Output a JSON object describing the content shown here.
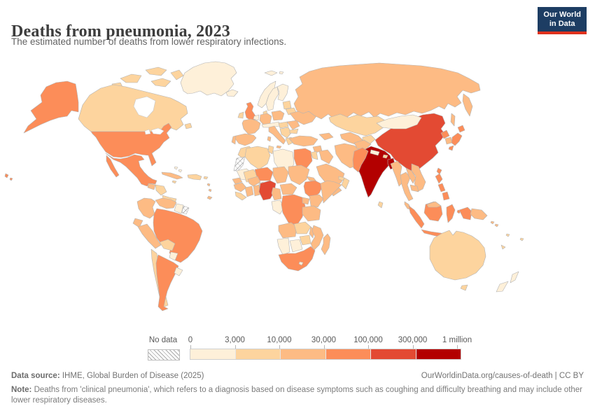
{
  "header": {
    "title": "Deaths from pneumonia, 2023",
    "subtitle": "The estimated number of deaths from lower respiratory infections."
  },
  "logo": {
    "line1": "Our World",
    "line2": "in Data",
    "bg": "#1d3d63",
    "accent": "#e0311d"
  },
  "legend": {
    "no_data_label": "No data",
    "tick_labels": [
      "0",
      "3,000",
      "10,000",
      "30,000",
      "100,000",
      "300,000",
      "1 million"
    ],
    "bin_colors": [
      "#fef0d9",
      "#fdd49e",
      "#fdbb84",
      "#fc8d59",
      "#e34a33",
      "#b30000"
    ]
  },
  "footer": {
    "source_label": "Data source:",
    "source_text": " IHME, Global Burden of Disease (2025)",
    "credit": "OurWorldinData.org/causes-of-death | CC BY",
    "note_label": "Note:",
    "note_text": " Deaths from 'clinical pneumonia', which refers to a diagnosis based on disease symptoms such as coughing and difficulty breathing and may include other lower respiratory diseases."
  },
  "chart_data": {
    "type": "choropleth_map",
    "title": "Deaths from pneumonia, 2023",
    "subtitle": "The estimated number of deaths from lower respiratory infections.",
    "unit": "deaths",
    "scale": "log-binned",
    "legend_position": "bottom",
    "bins": [
      {
        "label": "0-3,000",
        "color": "#fef0d9"
      },
      {
        "label": "3,000-10,000",
        "color": "#fdd49e"
      },
      {
        "label": "10,000-30,000",
        "color": "#fdbb84"
      },
      {
        "label": "30,000-100,000",
        "color": "#fc8d59"
      },
      {
        "label": "100,000-300,000",
        "color": "#e34a33"
      },
      {
        "label": "300,000-1 million",
        "color": "#b30000"
      },
      {
        "label": "No data",
        "color": "hatched"
      }
    ],
    "countries_by_bin": {
      "300,000-1 million": [
        "India",
        "Bangladesh"
      ],
      "100,000-300,000": [
        "China",
        "Nigeria"
      ],
      "30,000-100,000": [
        "United States",
        "Mexico",
        "Brazil",
        "Argentina",
        "United Kingdom",
        "Egypt",
        "Niger",
        "Ethiopia",
        "Democratic Republic of Congo",
        "South Africa",
        "Pakistan",
        "Japan",
        "North Korea",
        "Philippines",
        "Indonesia",
        "Taiwan"
      ],
      "10,000-30,000": [
        "Russia",
        "France",
        "Spain",
        "Portugal",
        "Germany",
        "Italy",
        "Poland",
        "Ukraine",
        "Romania",
        "Turkey",
        "Iran",
        "Iraq",
        "Saudi Arabia",
        "Yemen",
        "Afghanistan",
        "Uzbekistan",
        "Turkmenistan",
        "Colombia",
        "Venezuela",
        "Ecuador",
        "Peru",
        "Cuba",
        "Guatemala",
        "Senegal",
        "Guinea",
        "Cote d'Ivoire",
        "Ghana",
        "Burkina Faso",
        "Chad",
        "Sudan",
        "Eritrea",
        "Somalia",
        "Kenya",
        "Uganda",
        "Tanzania",
        "Angola",
        "Mozambique",
        "Malawi",
        "Cameroon",
        "Central African Republic",
        "Madagascar",
        "Myanmar",
        "Thailand",
        "Laos",
        "Vietnam",
        "Cambodia",
        "Malaysia",
        "South Korea",
        "Papua New Guinea"
      ],
      "3,000-10,000": [
        "Canada",
        "Chile",
        "Bolivia",
        "Morocco",
        "Algeria",
        "Tunisia",
        "Mali",
        "Zambia",
        "Zimbabwe",
        "Kazakhstan",
        "Kyrgyzstan",
        "Tajikistan",
        "Australia",
        "Ireland",
        "Denmark",
        "Belarus",
        "Baltic states",
        "Serbia",
        "Greece",
        "Hungary",
        "Bulgaria",
        "Sri Lanka",
        "Bhutan",
        "Israel",
        "Jordan",
        "Honduras",
        "Nicaragua",
        "Panama",
        "Costa Rica",
        "Dominican Republic",
        "Haiti",
        "Jamaica",
        "Sierra Leone",
        "Liberia",
        "Benin",
        "Togo",
        "Oman",
        "United Arab Emirates",
        "Fiji"
      ],
      "0-3,000": [
        "Greenland",
        "Iceland",
        "Norway",
        "Sweden",
        "Finland",
        "Mongolia",
        "Libya",
        "Mauritania",
        "Namibia",
        "Botswana",
        "Lesotho",
        "Paraguay",
        "Uruguay",
        "New Zealand",
        "Guyana",
        "Suriname",
        "Nepal",
        "Switzerland",
        "Austria",
        "Czechia",
        "Netherlands",
        "Belgium",
        "Bahamas",
        "Gabon",
        "Republic of Congo"
      ],
      "No data": [
        "Western Sahara",
        "French Guiana"
      ]
    }
  },
  "map": {
    "stroke": "#b3b3b3",
    "fills": {
      "greenland": "#fef0d9",
      "canadian-arctic": "#fdd49e",
      "canada": "#fdd49e",
      "newfoundland": "#fdd49e",
      "alaska": "#fc8d59",
      "usa": "#fc8d59",
      "hawaii": "#fc8d59",
      "mexico": "#fc8d59",
      "guatemala": "#fdbb84",
      "honduras-nicaragua": "#fdd49e",
      "costa-rica-panama": "#fdd49e",
      "cuba": "#fdbb84",
      "jamaica": "#fdd49e",
      "hispaniola": "#fdd49e",
      "puerto-rico": "#fdd49e",
      "bahamas": "#fef0d9",
      "lesser-antilles": "#fdbb84",
      "colombia": "#fdbb84",
      "venezuela": "#fdbb84",
      "guyana-suriname": "#fef0d9",
      "french-guiana": "hatch",
      "ecuador": "#fdbb84",
      "peru": "#fdbb84",
      "brazil": "#fc8d59",
      "bolivia": "#fdd49e",
      "paraguay": "#fef0d9",
      "chile": "#fdd49e",
      "argentina": "#fc8d59",
      "uruguay": "#fef0d9",
      "iceland": "#fef0d9",
      "svalbard": "#fef0d9",
      "uk": "#fc8d59",
      "ireland": "#fdd49e",
      "norway": "#fef0d9",
      "sweden": "#fef0d9",
      "finland": "#fef0d9",
      "denmark": "#fdd49e",
      "baltics": "#fdd49e",
      "belarus": "#fdd49e",
      "benelux": "#fef0d9",
      "germany": "#fdbb84",
      "poland": "#fdbb84",
      "france": "#fdbb84",
      "spain": "#fdbb84",
      "portugal": "#fdbb84",
      "italy": "#fdbb84",
      "alpine": "#fef0d9",
      "hungary-slovakia": "#fdd49e",
      "balkans": "#fdd49e",
      "greece": "#fdd49e",
      "romania": "#fdbb84",
      "bulgaria": "#fdd49e",
      "ukraine": "#fdbb84",
      "russia": "#fdbb84",
      "turkey": "#fdbb84",
      "caucasus": "#fdbb84",
      "syria": "#fdbb84",
      "israel-jordan": "#fdd49e",
      "iraq": "#fdbb84",
      "saudi-arabia": "#fdbb84",
      "yemen": "#fdbb84",
      "oman": "#fdd49e",
      "uae": "#fdd49e",
      "iran": "#fdbb84",
      "afghanistan": "#fdbb84",
      "pakistan": "#fc8d59",
      "kazakhstan": "#fdd49e",
      "uzbekistan-turkmenistan": "#fdbb84",
      "kyrgyzstan-tajikistan": "#fdd49e",
      "india": "#b30000",
      "sri-lanka": "#fdd49e",
      "nepal": "#fef0d9",
      "bhutan": "#fdd49e",
      "bangladesh": "#b30000",
      "china": "#e34a33",
      "mongolia": "#fef0d9",
      "taiwan": "#fc8d59",
      "myanmar": "#fdbb84",
      "thailand": "#fdbb84",
      "laos": "#fdbb84",
      "vietnam": "#fdbb84",
      "cambodia": "#fdbb84",
      "malaysia": "#fdbb84",
      "north-korea": "#fc8d59",
      "south-korea": "#fdbb84",
      "japan": "#fc8d59",
      "philippines": "#fc8d59",
      "indonesia": "#fc8d59",
      "papua-new-guinea": "#fdbb84",
      "solomon-islands": "#fdbb84",
      "pacific-islands": "#fdd49e",
      "australia": "#fdd49e",
      "new-zealand": "#fef0d9",
      "morocco": "#fdd49e",
      "western-sahara": "hatch",
      "algeria": "#fdd49e",
      "tunisia": "#fdd49e",
      "libya": "#fef0d9",
      "egypt": "#fc8d59",
      "mauritania": "#fef0d9",
      "mali": "#fdd49e",
      "niger": "#fc8d59",
      "chad": "#fdbb84",
      "sudan": "#fdbb84",
      "eritrea": "#fdbb84",
      "ethiopia": "#fc8d59",
      "somalia": "#fdbb84",
      "senegal": "#fdbb84",
      "guinea": "#fdbb84",
      "sierra-leone-liberia": "#fdd49e",
      "cote-divoire": "#fdbb84",
      "ghana": "#fdbb84",
      "burkina-faso": "#fdbb84",
      "benin-togo": "#fdd49e",
      "nigeria": "#e34a33",
      "cameroon": "#fdbb84",
      "central-african-republic": "#fdbb84",
      "gabon-congo": "#fef0d9",
      "drc": "#fc8d59",
      "uganda": "#fdbb84",
      "kenya": "#fdbb84",
      "tanzania": "#fdbb84",
      "angola": "#fdbb84",
      "zambia": "#fdd49e",
      "malawi": "#fdbb84",
      "mozambique": "#fdbb84",
      "zimbabwe": "#fdd49e",
      "namibia": "#fef0d9",
      "botswana": "#fef0d9",
      "south-africa": "#fc8d59",
      "lesotho": "#fef0d9",
      "madagascar": "#fdbb84"
    }
  }
}
